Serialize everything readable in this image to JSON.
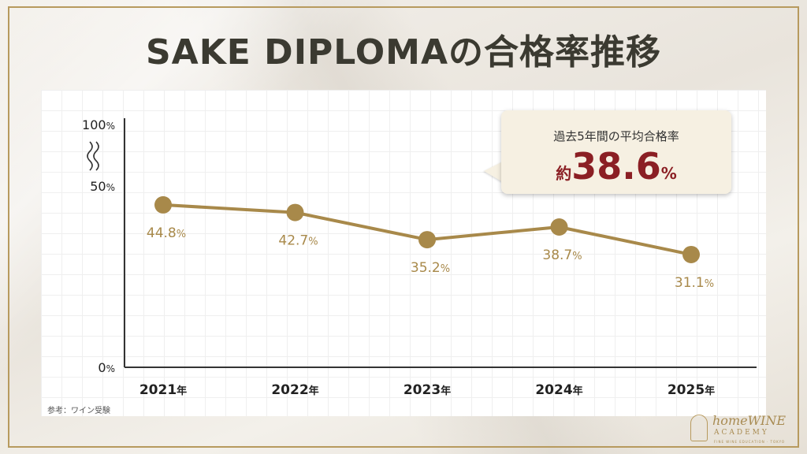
{
  "page": {
    "title": "SAKE DIPLOMAの合格率推移",
    "source": "参考：ワイン受験"
  },
  "callout": {
    "label": "過去5年間の平均合格率",
    "prefix": "約",
    "value": "38.6",
    "unit": "%"
  },
  "logo": {
    "line1": "homeWINE",
    "line2": "ACADEMY",
    "line3": "FINE WINE EDUCATION · TOKYO"
  },
  "colors": {
    "line": "#a8894a",
    "accent": "#8b1f24",
    "axis": "#333333",
    "title": "#3b3a31"
  },
  "chart_data": {
    "type": "line",
    "title": "SAKE DIPLOMAの合格率推移",
    "xlabel": "",
    "ylabel": "",
    "categories": [
      "2021年",
      "2022年",
      "2023年",
      "2024年",
      "2025年"
    ],
    "x_numbers": [
      "2021",
      "2022",
      "2023",
      "2024",
      "2025"
    ],
    "x_suffix": "年",
    "values": [
      44.8,
      42.7,
      35.2,
      38.7,
      31.1
    ],
    "value_labels": [
      "44.8",
      "42.7",
      "35.2",
      "38.7",
      "31.1"
    ],
    "value_unit": "%",
    "y_ticks": [
      {
        "value": 100,
        "num": "100",
        "unit": "%"
      },
      {
        "value": 50,
        "num": "50",
        "unit": "%"
      },
      {
        "value": 0,
        "num": "0",
        "unit": "%"
      }
    ],
    "ylim": [
      0,
      100
    ],
    "axis_break": true,
    "grid": true
  }
}
